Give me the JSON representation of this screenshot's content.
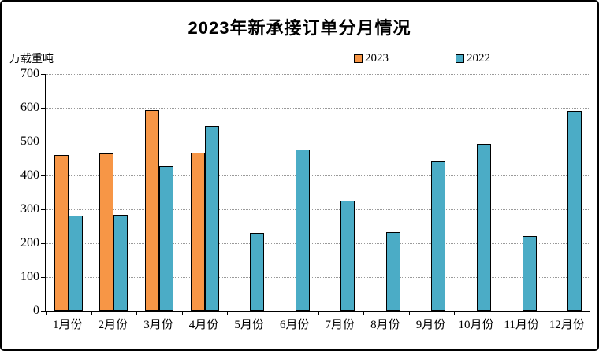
{
  "page": {
    "title": "2023年新承接订单分月情况",
    "unit_label": "万载重吨"
  },
  "chart_data": {
    "type": "bar",
    "title": "2023年新承接订单分月情况",
    "xlabel": "",
    "ylabel": "万载重吨",
    "ylim": [
      0,
      700
    ],
    "y_tick_step": 100,
    "y_ticks": [
      0,
      100,
      200,
      300,
      400,
      500,
      600,
      700
    ],
    "grid": "horizontal-dotted",
    "legend_position": "top",
    "categories": [
      "1月份",
      "2月份",
      "3月份",
      "4月份",
      "5月份",
      "6月份",
      "7月份",
      "8月份",
      "9月份",
      "10月份",
      "11月份",
      "12月份"
    ],
    "series": [
      {
        "name": "2023",
        "color": "#F79646",
        "values": [
          460,
          465,
          593,
          467,
          null,
          null,
          null,
          null,
          null,
          null,
          null,
          null
        ]
      },
      {
        "name": "2022",
        "color": "#4BACC6",
        "values": [
          282,
          284,
          428,
          546,
          231,
          477,
          325,
          233,
          441,
          494,
          220,
          591
        ]
      }
    ],
    "colors": {
      "bar_border": "#000000",
      "gridline": "#999999",
      "axis": "#000000",
      "background": "#ffffff"
    }
  }
}
